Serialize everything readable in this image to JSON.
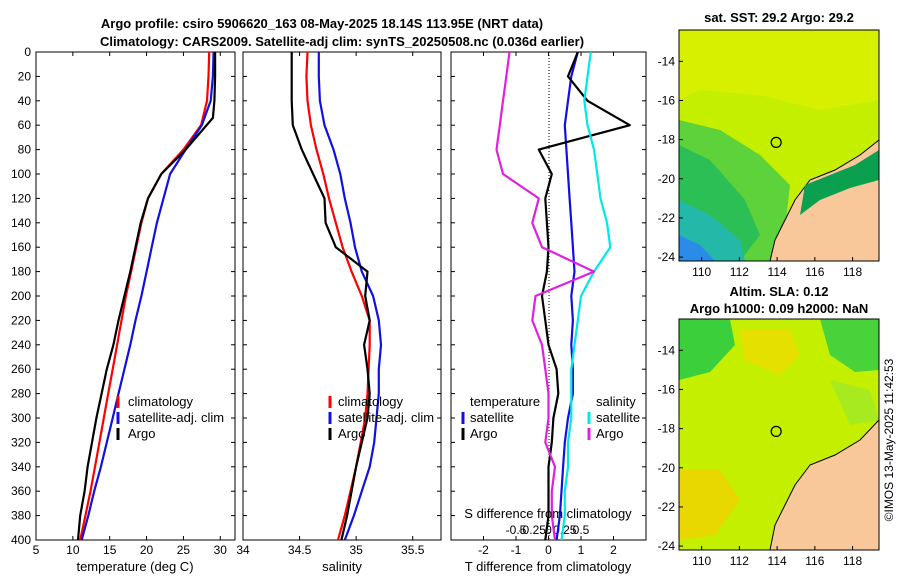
{
  "header": {
    "title_line1": "Argo profile: csiro 5906620_163 08-May-2025 18.14S 113.95E (NRT data)",
    "title_line2": "Climatology: CARS2009. Satellite-adj clim: synTS_20250508.nc (0.036d earlier)"
  },
  "credit": "©IMOS 13-May-2025 11:42:53",
  "colors": {
    "climatology": "#ff0000",
    "satellite": "#1010e0",
    "argo": "#000000",
    "sat_salinity": "#00e8e8",
    "argo_salinity": "#e020e0",
    "land": "#f8c89a"
  },
  "chart_data": [
    {
      "type": "line",
      "id": "temperature",
      "xlabel": "temperature (deg C)",
      "xlim": [
        5,
        32
      ],
      "ylim": [
        400,
        0
      ],
      "xticks": [
        "5",
        "10",
        "15",
        "20",
        "25",
        "30"
      ],
      "xtick_values": [
        5,
        10,
        15,
        20,
        25,
        30
      ],
      "yticks": [
        "0",
        "20",
        "40",
        "60",
        "80",
        "100",
        "120",
        "140",
        "160",
        "180",
        "200",
        "220",
        "240",
        "260",
        "280",
        "300",
        "320",
        "340",
        "360",
        "380",
        "400"
      ],
      "legend": [
        "climatology",
        "satellite-adj. clim",
        "Argo"
      ],
      "series": [
        {
          "name": "climatology",
          "color": "#ff0000",
          "x": [
            28.5,
            28.4,
            28.2,
            27.4,
            25.0,
            22.0,
            20.2,
            19.3,
            18.6,
            17.9,
            17.2,
            16.6,
            16.0,
            15.4,
            14.8,
            14.2,
            13.6,
            13.0,
            12.4,
            11.7,
            11.0
          ],
          "y": [
            0,
            20,
            40,
            60,
            80,
            100,
            120,
            140,
            160,
            180,
            200,
            220,
            240,
            260,
            280,
            300,
            320,
            340,
            360,
            380,
            400
          ]
        },
        {
          "name": "satellite-adj. clim",
          "color": "#1010e0",
          "x": [
            29.1,
            29.0,
            28.7,
            27.5,
            25.3,
            23.2,
            22.3,
            21.4,
            20.7,
            20.0,
            19.3,
            18.5,
            17.8,
            17.0,
            16.2,
            15.4,
            14.6,
            13.8,
            12.9,
            12.1,
            11.2
          ],
          "y": [
            0,
            20,
            40,
            60,
            80,
            100,
            120,
            140,
            160,
            180,
            200,
            220,
            240,
            260,
            280,
            300,
            320,
            340,
            360,
            380,
            400
          ]
        },
        {
          "name": "Argo",
          "color": "#000000",
          "x": [
            29.3,
            29.3,
            29.2,
            29.0,
            25.3,
            22.0,
            20.2,
            19.2,
            18.5,
            17.8,
            17.0,
            16.2,
            15.5,
            14.6,
            13.9,
            13.2,
            12.6,
            12.0,
            11.6,
            11.0,
            10.7
          ],
          "y": [
            0,
            20,
            40,
            54,
            80,
            100,
            120,
            140,
            160,
            180,
            200,
            220,
            240,
            260,
            280,
            300,
            320,
            340,
            360,
            380,
            400
          ]
        }
      ]
    },
    {
      "type": "line",
      "id": "salinity",
      "xlabel": "salinity",
      "xlim": [
        34,
        35.75
      ],
      "ylim": [
        400,
        0
      ],
      "xticks": [
        "34",
        "34.5",
        "35",
        "35.5"
      ],
      "xtick_values": [
        34,
        34.5,
        35,
        35.5
      ],
      "legend": [
        "climatology",
        "satellite-adj. clim",
        "Argo"
      ],
      "series": [
        {
          "name": "climatology",
          "color": "#ff0000",
          "x": [
            34.57,
            34.56,
            34.57,
            34.6,
            34.65,
            34.71,
            34.76,
            34.82,
            34.88,
            34.96,
            35.05,
            35.12,
            35.12,
            35.11,
            35.1,
            35.08,
            35.04,
            35.0,
            34.95,
            34.9,
            34.84
          ],
          "y": [
            0,
            20,
            40,
            60,
            80,
            100,
            120,
            140,
            160,
            180,
            200,
            220,
            240,
            260,
            280,
            300,
            320,
            340,
            360,
            380,
            400
          ]
        },
        {
          "name": "satellite-adj. clim",
          "color": "#1010e0",
          "x": [
            34.67,
            34.67,
            34.68,
            34.72,
            34.8,
            34.86,
            34.9,
            34.95,
            34.99,
            35.05,
            35.15,
            35.2,
            35.22,
            35.2,
            35.2,
            35.18,
            35.16,
            35.12,
            35.05,
            34.98,
            34.9
          ],
          "y": [
            0,
            20,
            40,
            60,
            80,
            100,
            120,
            140,
            160,
            180,
            200,
            220,
            240,
            260,
            280,
            300,
            320,
            340,
            360,
            380,
            400
          ]
        },
        {
          "name": "Argo",
          "color": "#000000",
          "x": [
            34.43,
            34.43,
            34.43,
            34.44,
            34.52,
            34.62,
            34.72,
            34.73,
            34.82,
            35.1,
            35.08,
            35.12,
            35.07,
            35.1,
            35.12,
            35.1,
            35.05,
            35.0,
            34.96,
            34.92,
            34.87
          ],
          "y": [
            0,
            20,
            40,
            60,
            80,
            100,
            120,
            140,
            160,
            180,
            200,
            220,
            240,
            260,
            280,
            300,
            320,
            340,
            360,
            380,
            400
          ]
        }
      ]
    },
    {
      "type": "line",
      "id": "difference",
      "xlabel": "T difference from climatology",
      "xlabel_top": "S difference from climatology",
      "xlim": [
        -3,
        3
      ],
      "ylim": [
        400,
        0
      ],
      "xticks": [
        "-2",
        "-1",
        "0",
        "1",
        "2"
      ],
      "xtick_values": [
        -2,
        -1,
        0,
        1,
        2
      ],
      "xticks_s": [
        "-0.5",
        "-0.25",
        "0",
        "0.25",
        "0.5"
      ],
      "xtick_values_s": [
        -0.5,
        -0.25,
        0,
        0.25,
        0.5
      ],
      "legend_temperature": {
        "title": "temperature",
        "items": [
          "satellite",
          "Argo"
        ]
      },
      "legend_salinity": {
        "title": "salinity",
        "items": [
          "satellite",
          "Argo"
        ]
      },
      "series": [
        {
          "name": "T satellite",
          "color": "#1010e0",
          "x": [
            0.9,
            0.7,
            0.6,
            0.5,
            0.55,
            0.6,
            0.65,
            0.7,
            0.75,
            0.8,
            0.7,
            0.75,
            0.7,
            0.75,
            0.75,
            0.6,
            0.5,
            0.45,
            0.4,
            0.35,
            0.25
          ],
          "y": [
            0,
            20,
            40,
            60,
            80,
            100,
            120,
            140,
            160,
            180,
            200,
            220,
            240,
            260,
            280,
            300,
            320,
            340,
            360,
            380,
            400
          ]
        },
        {
          "name": "T Argo",
          "color": "#000000",
          "x": [
            0.9,
            0.6,
            1.2,
            2.5,
            -0.3,
            0.1,
            -0.1,
            -0.05,
            0.0,
            -0.05,
            -0.2,
            -0.1,
            0.0,
            0.25,
            0.3,
            0.15,
            0.1,
            0.0,
            0.0,
            0.0,
            -0.1
          ],
          "y": [
            0,
            20,
            40,
            60,
            80,
            100,
            120,
            140,
            160,
            180,
            200,
            220,
            240,
            260,
            280,
            300,
            320,
            340,
            360,
            380,
            400
          ]
        },
        {
          "name": "S satellite",
          "color": "#00e8e8",
          "x": [
            0.65,
            0.6,
            0.55,
            0.6,
            0.7,
            0.75,
            0.8,
            0.9,
            0.95,
            0.7,
            0.5,
            0.45,
            0.4,
            0.35,
            0.35,
            0.35,
            0.3,
            0.3,
            0.25,
            0.25,
            0.2
          ],
          "y": [
            0,
            20,
            40,
            60,
            80,
            100,
            120,
            140,
            160,
            180,
            200,
            220,
            240,
            260,
            280,
            300,
            320,
            340,
            360,
            380,
            400
          ]
        },
        {
          "name": "S Argo",
          "color": "#e020e0",
          "x": [
            -0.6,
            -0.65,
            -0.7,
            -0.75,
            -0.8,
            -0.7,
            -0.15,
            -0.25,
            -0.1,
            0.7,
            -0.2,
            -0.25,
            -0.1,
            -0.05,
            0.0,
            0.0,
            -0.05,
            0.1,
            0.05,
            0.05,
            0.1
          ],
          "y": [
            0,
            20,
            40,
            60,
            80,
            100,
            120,
            140,
            160,
            180,
            200,
            220,
            240,
            260,
            280,
            300,
            320,
            340,
            360,
            380,
            400
          ]
        }
      ]
    },
    {
      "type": "heatmap",
      "id": "sst-map",
      "title": "sat. SST: 29.2 Argo: 29.2",
      "xticks": [
        "110",
        "112",
        "114",
        "116",
        "118"
      ],
      "xtick_values": [
        110,
        112,
        114,
        116,
        118
      ],
      "yticks": [
        "-14",
        "-16",
        "-18",
        "-20",
        "-22",
        "-24"
      ],
      "ytick_values": [
        -14,
        -16,
        -18,
        -20,
        -22,
        -24
      ],
      "xlim": [
        108.8,
        119.4
      ],
      "ylim": [
        -24.2,
        -12.4
      ],
      "float_position": [
        113.95,
        -18.14
      ]
    },
    {
      "type": "heatmap",
      "id": "sla-map",
      "title": "Altim. SLA: 0.12",
      "subtitle": "Argo h1000: 0.09 h2000: NaN",
      "xticks": [
        "110",
        "112",
        "114",
        "116",
        "118"
      ],
      "xtick_values": [
        110,
        112,
        114,
        116,
        118
      ],
      "yticks": [
        "-14",
        "-16",
        "-18",
        "-20",
        "-22",
        "-24"
      ],
      "ytick_values": [
        -14,
        -16,
        -18,
        -20,
        -22,
        -24
      ],
      "xlim": [
        108.8,
        119.4
      ],
      "ylim": [
        -24.2,
        -12.4
      ],
      "float_position": [
        113.95,
        -18.14
      ]
    }
  ]
}
